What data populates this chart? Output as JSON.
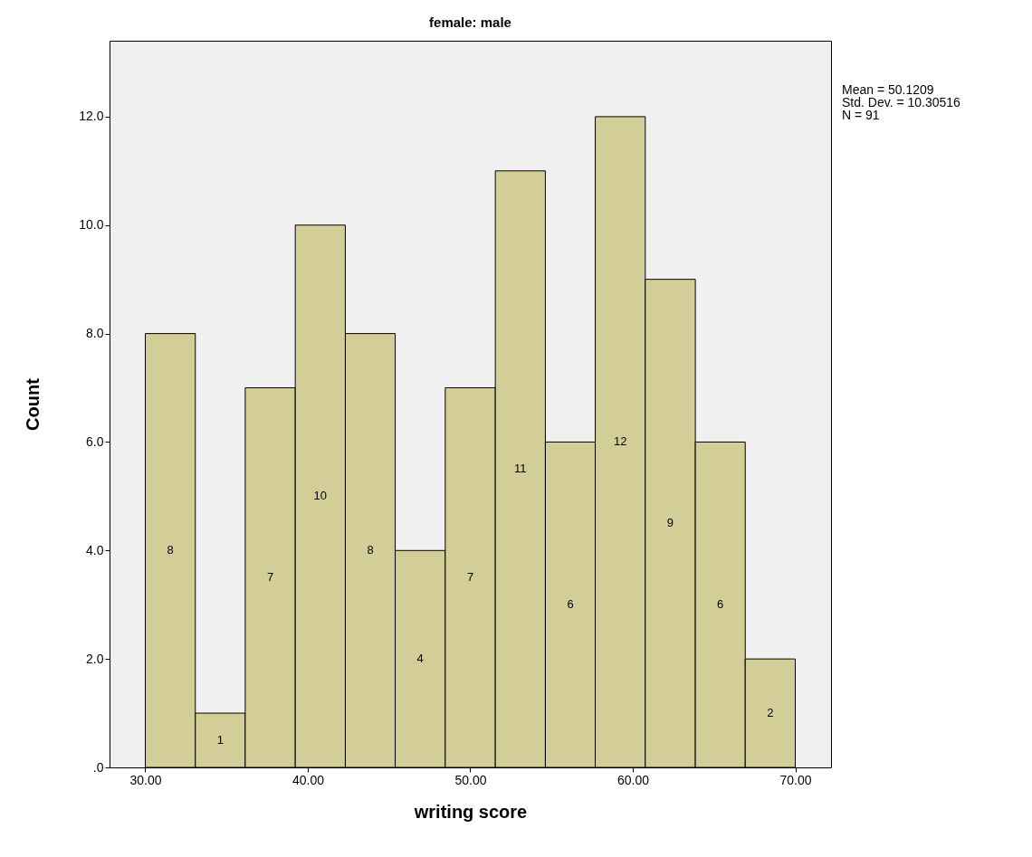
{
  "chart_data": {
    "type": "histogram",
    "title": "female: male",
    "xlabel": "writing score",
    "ylabel": "Count",
    "bins": [
      30,
      33.08,
      36.15,
      39.23,
      42.31,
      45.38,
      48.46,
      51.54,
      54.62,
      57.69,
      60.77,
      63.85,
      66.92,
      70
    ],
    "values": [
      8,
      1,
      7,
      10,
      8,
      4,
      7,
      11,
      6,
      12,
      9,
      6,
      2
    ],
    "color": "#d3ce97",
    "data_labels": true,
    "xlim": [
      27.8,
      72.2
    ],
    "xticks": [
      {
        "value": 30,
        "label": "30.00"
      },
      {
        "value": 40,
        "label": "40.00"
      },
      {
        "value": 50,
        "label": "50.00"
      },
      {
        "value": 60,
        "label": "60.00"
      },
      {
        "value": 70,
        "label": "70.00"
      }
    ],
    "ylim": [
      0,
      13.4
    ],
    "yticks": [
      {
        "value": 0,
        "label": ".0"
      },
      {
        "value": 2,
        "label": "2.0"
      },
      {
        "value": 4,
        "label": "4.0"
      },
      {
        "value": 6,
        "label": "6.0"
      },
      {
        "value": 8,
        "label": "8.0"
      },
      {
        "value": 10,
        "label": "10.0"
      },
      {
        "value": 12,
        "label": "12.0"
      }
    ],
    "annotations": [
      "Mean = 50.1209",
      "Std. Dev. = 10.30516",
      "N = 91"
    ]
  }
}
